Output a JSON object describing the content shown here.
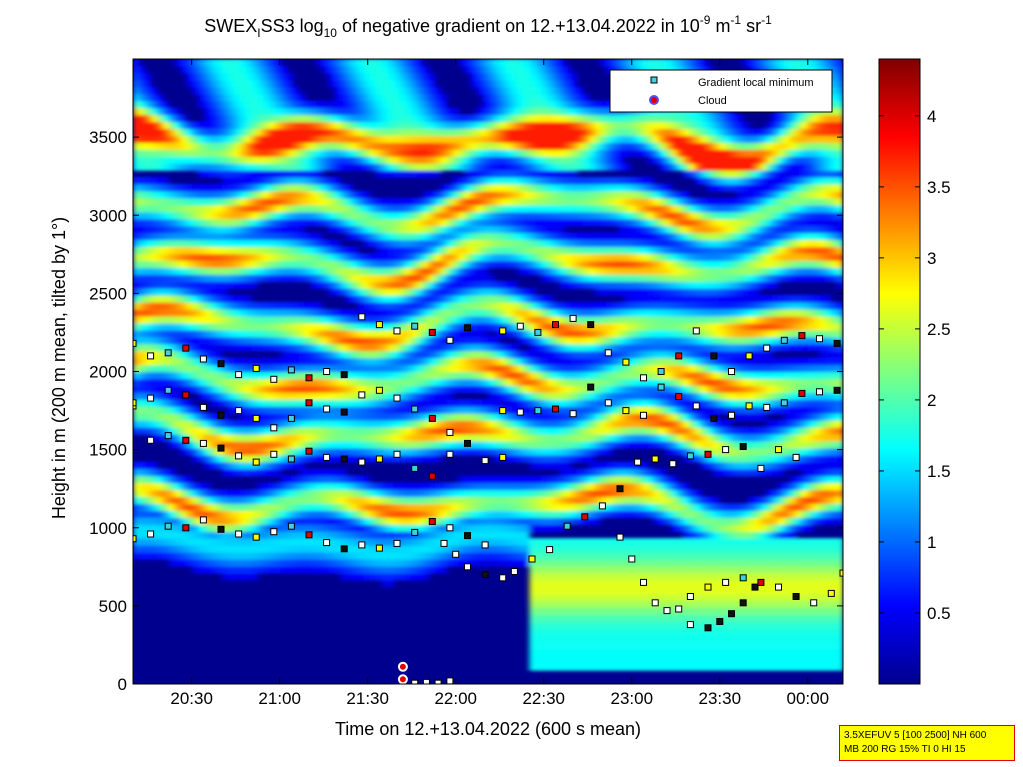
{
  "chart_data": {
    "type": "heatmap",
    "title": {
      "part1": "SWEX",
      "sub1": "I",
      "part2": "SS3 log",
      "sub2": "10",
      "part3": " of negative gradient on 12.+13.04.2022 in 10",
      "sup1": "-9",
      "part4": " m",
      "sup2": "-1",
      "part5": " sr",
      "sup3": "-1"
    },
    "xlabel": "Time on 12.+13.04.2022 (600 s mean)",
    "ylabel": "Height in m (200 m mean, tilted by 1°)",
    "x_ticks": [
      "20:30",
      "21:00",
      "21:30",
      "22:00",
      "22:30",
      "23:00",
      "23:30",
      "00:00"
    ],
    "y_ticks": [
      "0",
      "500",
      "1000",
      "1500",
      "2000",
      "2500",
      "3000",
      "3500"
    ],
    "x_range_minutes": [
      1210,
      1452
    ],
    "y_range": [
      0,
      4000
    ],
    "colorbar": {
      "ticks": [
        "0.5",
        "1",
        "1.5",
        "2",
        "2.5",
        "3",
        "3.5",
        "4"
      ],
      "range": [
        0,
        4.4
      ],
      "colormap": "jet"
    },
    "legend": {
      "placement": "top-right",
      "entries": [
        {
          "label": "Gradient local minimum",
          "marker": "square",
          "color": "#40d0e0"
        },
        {
          "label": "Cloud",
          "marker": "circle",
          "color": "#e00000"
        }
      ]
    },
    "series": [
      {
        "name": "Gradient local minimum",
        "layers": [
          {
            "t": [
              1210,
              1216,
              1222,
              1228,
              1234,
              1240,
              1246,
              1252,
              1258,
              1264,
              1270,
              1276,
              1282,
              1288,
              1294,
              1300,
              1306,
              1312,
              1318,
              1324,
              1330
            ],
            "h": [
              930,
              960,
              1010,
              1000,
              1050,
              990,
              960,
              940,
              975,
              1010,
              955,
              905,
              865,
              890,
              870,
              900,
              970,
              1040,
              1000,
              950,
              890
            ]
          },
          {
            "t": [
              1210,
              1216,
              1222,
              1228,
              1234,
              1240,
              1246,
              1252,
              1258,
              1264,
              1270,
              1276,
              1282,
              1288,
              1294,
              1300,
              1306,
              1312,
              1318,
              1324,
              1330,
              1336
            ],
            "h": [
              1780,
              1560,
              1590,
              1560,
              1540,
              1510,
              1460,
              1420,
              1470,
              1440,
              1490,
              1450,
              1440,
              1420,
              1440,
              1470,
              1380,
              1330,
              1470,
              1540,
              1430,
              1450
            ]
          },
          {
            "t": [
              1210,
              1216,
              1222,
              1228,
              1234,
              1240,
              1246,
              1252,
              1258,
              1264,
              1270,
              1276,
              1282,
              1288,
              1294,
              1300,
              1306,
              1312,
              1318
            ],
            "h": [
              1800,
              1830,
              1880,
              1850,
              1770,
              1720,
              1750,
              1700,
              1640,
              1700,
              1800,
              1760,
              1740,
              1850,
              1880,
              1830,
              1760,
              1700,
              1610
            ]
          },
          {
            "t": [
              1210,
              1216,
              1222,
              1228,
              1234,
              1240,
              1246,
              1252,
              1258,
              1264,
              1270,
              1276,
              1282,
              1288,
              1294,
              1300,
              1306,
              1312,
              1318,
              1324
            ],
            "h": [
              2180,
              2100,
              2120,
              2150,
              2080,
              2050,
              1980,
              2020,
              1950,
              2010,
              1960,
              2000,
              1980,
              2350,
              2300,
              2260,
              2290,
              2250,
              2200,
              2280
            ]
          },
          {
            "t": [
              1316,
              1320,
              1324,
              1330,
              1336,
              1340,
              1346,
              1352,
              1358,
              1364,
              1370,
              1376,
              1382,
              1388,
              1394,
              1400,
              1406,
              1412,
              1418,
              1424,
              1430,
              1436
            ],
            "h": [
              900,
              830,
              750,
              700,
              680,
              720,
              800,
              860,
              1010,
              1070,
              1140,
              1250,
              1420,
              1440,
              1410,
              1460,
              1470,
              1500,
              1520,
              1380,
              1500,
              1450
            ]
          },
          {
            "t": [
              1336,
              1342,
              1348,
              1354,
              1360,
              1366,
              1372,
              1378,
              1384,
              1390,
              1396,
              1402,
              1408,
              1414,
              1420,
              1426,
              1432,
              1438,
              1444,
              1450
            ],
            "h": [
              1750,
              1740,
              1750,
              1760,
              1730,
              1900,
              1800,
              1750,
              1720,
              1900,
              1840,
              1780,
              1700,
              1720,
              1780,
              1770,
              1800,
              1860,
              1870,
              1880
            ]
          },
          {
            "t": [
              1336,
              1342,
              1348,
              1354,
              1360,
              1366,
              1372,
              1378,
              1384,
              1390,
              1396,
              1402,
              1408,
              1414,
              1420,
              1426,
              1432,
              1438,
              1444,
              1450
            ],
            "h": [
              2260,
              2290,
              2250,
              2300,
              2340,
              2300,
              2120,
              2060,
              1960,
              2000,
              2100,
              2260,
              2100,
              2000,
              2100,
              2150,
              2200,
              2230,
              2210,
              2180
            ]
          },
          {
            "t": [
              1376,
              1380,
              1384,
              1388,
              1392,
              1396,
              1400,
              1406,
              1412,
              1418,
              1424,
              1430,
              1436,
              1442,
              1448,
              1452
            ],
            "h": [
              940,
              800,
              650,
              520,
              470,
              480,
              560,
              620,
              650,
              680,
              650,
              620,
              560,
              520,
              580,
              710
            ]
          },
          {
            "t": [
              1400,
              1406,
              1410,
              1414,
              1418,
              1422
            ],
            "h": [
              380,
              360,
              400,
              450,
              520,
              620
            ]
          },
          {
            "t": [
              1302,
              1306,
              1310,
              1314,
              1318
            ],
            "h": [
              10,
              5,
              10,
              5,
              20
            ]
          }
        ]
      },
      {
        "name": "Cloud",
        "points": [
          {
            "t": 1302,
            "h": 110
          },
          {
            "t": 1302,
            "h": 30
          }
        ]
      }
    ]
  },
  "info_box": {
    "line1": "3.5XEFUV 5 [100 2500] NH 600",
    "line2": "MB 200 RG 15% TI 0 HI 15"
  }
}
